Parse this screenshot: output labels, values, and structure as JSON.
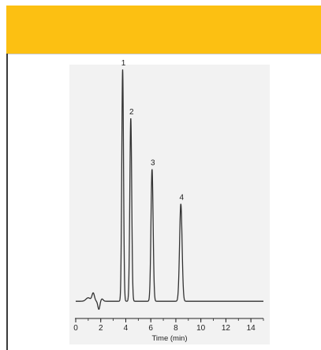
{
  "colors": {
    "banner": "#fcc012",
    "panel": "#f2f2f2",
    "trace": "#333333",
    "axis": "#222222"
  },
  "chart_data": {
    "type": "line",
    "title": "",
    "xlabel": "Time (min)",
    "ylabel": "",
    "xlim": [
      0,
      15
    ],
    "xticks": [
      0,
      2,
      4,
      6,
      8,
      10,
      12,
      14
    ],
    "x_minor_step": 1,
    "grid": false,
    "legend": "none",
    "baseline": 0.03,
    "disturbance": [
      {
        "t": 1.0,
        "amp": 0.015,
        "w": 0.18
      },
      {
        "t": 1.4,
        "amp": 0.035,
        "w": 0.1
      },
      {
        "t": 1.85,
        "amp": -0.035,
        "w": 0.08
      },
      {
        "t": 2.1,
        "amp": 0.01,
        "w": 0.1
      }
    ],
    "peaks": [
      {
        "label": "1",
        "time": 3.75,
        "height": 1.0,
        "width": 0.07
      },
      {
        "label": "2",
        "time": 4.4,
        "height": 0.79,
        "width": 0.075
      },
      {
        "label": "3",
        "time": 6.1,
        "height": 0.57,
        "width": 0.085
      },
      {
        "label": "4",
        "time": 8.4,
        "height": 0.42,
        "width": 0.1
      }
    ]
  }
}
